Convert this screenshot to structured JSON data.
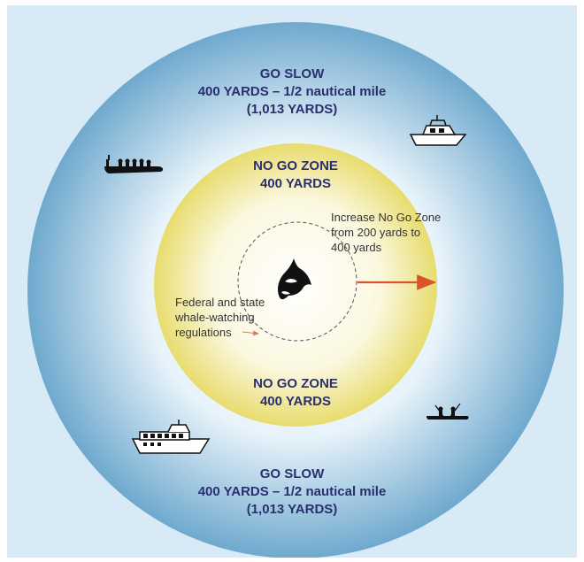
{
  "colors": {
    "background": "#d7eaf5",
    "outer_edge": "#7fb3d4",
    "outer_center": "#ffffff",
    "inner_edge": "#ece17a",
    "inner_center": "#ffffff",
    "title_text": "#2a2f6e",
    "note_text": "#333333",
    "arrow": "#d9532b"
  },
  "go_slow_top": {
    "line1": "GO SLOW",
    "line2": "400 YARDS – 1/2 nautical mile",
    "line3": "(1,013 YARDS)"
  },
  "no_go_top": {
    "line1": "NO GO ZONE",
    "line2": "400 YARDS"
  },
  "increase_note": {
    "line1": "Increase No Go Zone",
    "line2": "from 200 yards to",
    "line3": "400 yards"
  },
  "regulations_note": {
    "line1": "Federal and state",
    "line2": "whale-watching",
    "line3": "regulations"
  },
  "no_go_bottom": {
    "line1": "NO GO ZONE",
    "line2": "400 YARDS"
  },
  "go_slow_bottom": {
    "line1": "GO SLOW",
    "line2": "400 YARDS – 1/2 nautical mile",
    "line3": "(1,013 YARDS)"
  },
  "icons": {
    "orca": "orca-icon",
    "zodiac": "zodiac-boat-icon",
    "motor_yacht": "motor-yacht-icon",
    "tour_boat": "tour-boat-icon",
    "kayak": "kayak-icon"
  }
}
